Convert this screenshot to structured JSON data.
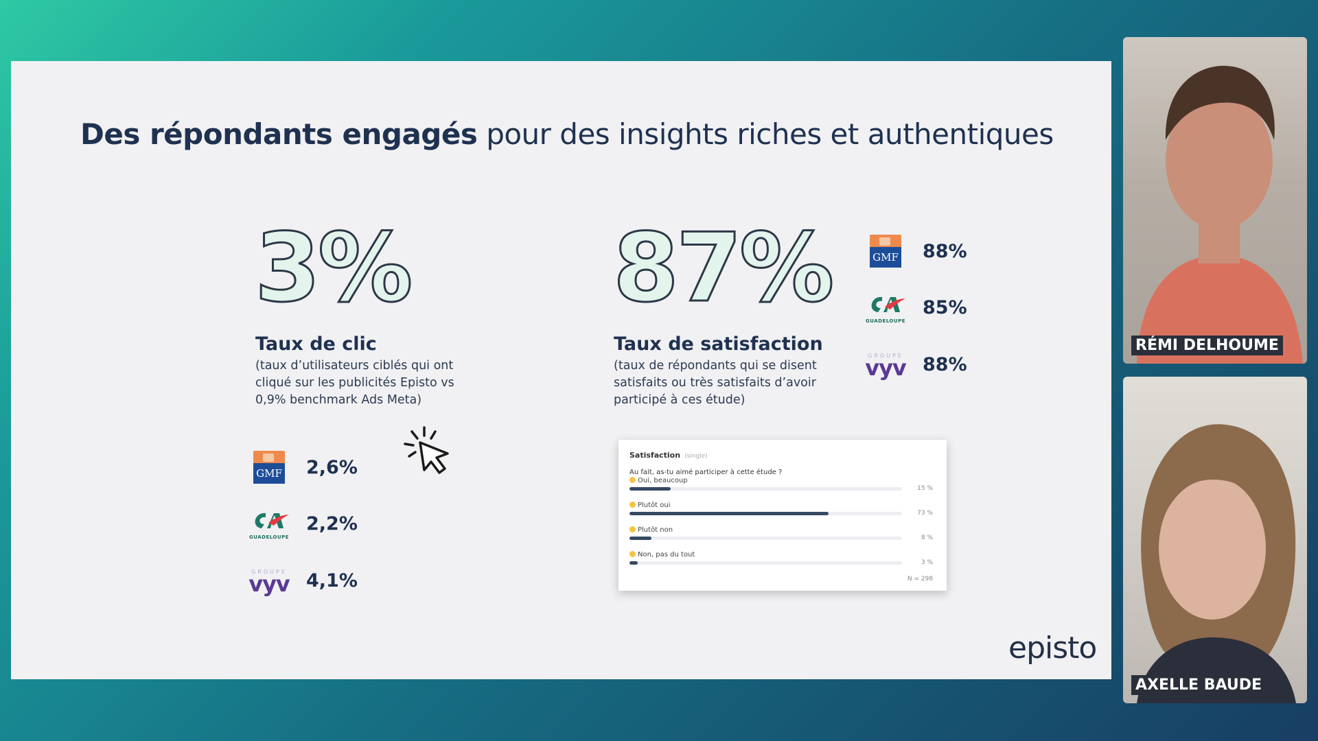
{
  "slide": {
    "title_bold": "Des répondants engagés",
    "title_rest": " pour des insights riches et authentiques",
    "click": {
      "big": "3%",
      "title": "Taux de clic",
      "desc": "(taux d’utilisateurs ciblés qui ont cliqué sur les publicités Episto vs 0,9% benchmark Ads Meta)",
      "brands": [
        {
          "logo": "gmf-logo",
          "gmf_text": "GMF",
          "value": "2,6%"
        },
        {
          "logo": "credit-agricole-logo",
          "ca_sub": "GUADELOUPE",
          "value": "2,2%"
        },
        {
          "logo": "groupe-vyv-logo",
          "vyv_group": "GROUPE",
          "vyv_word": "vyv",
          "value": "4,1%"
        }
      ]
    },
    "satisfaction": {
      "big": "87%",
      "title": "Taux de satisfaction",
      "desc": "(taux de répondants qui se disent satisfaits ou très satisfaits d’avoir participé à ces étude)",
      "brands": [
        {
          "logo": "gmf-logo",
          "gmf_text": "GMF",
          "value": "88%"
        },
        {
          "logo": "credit-agricole-logo",
          "ca_sub": "GUADELOUPE",
          "value": "85%"
        },
        {
          "logo": "groupe-vyv-logo",
          "vyv_group": "GROUPE",
          "vyv_word": "vyv",
          "value": "88%"
        }
      ]
    },
    "survey_card": {
      "heading": "Satisfaction",
      "heading_tag": "(single)",
      "question": "Au fait, as-tu aimé participer à cette étude ?",
      "options": [
        {
          "label": "Oui, beaucoup",
          "percent": 15,
          "value_label": "15 %"
        },
        {
          "label": "Plutôt oui",
          "percent": 73,
          "value_label": "73 %"
        },
        {
          "label": "Plutôt non",
          "percent": 8,
          "value_label": "8 %"
        },
        {
          "label": "Non, pas du tout",
          "percent": 3,
          "value_label": "3 %"
        }
      ],
      "sample": "N = 298"
    },
    "brand_logo_text": "episto",
    "colors": {
      "accent": "#2cc4a0",
      "navy": "#1f3150",
      "bar": "#354a63"
    }
  },
  "participants": [
    {
      "name": "RÉMI DELHOUME"
    },
    {
      "name": "AXELLE BAUDE"
    }
  ]
}
